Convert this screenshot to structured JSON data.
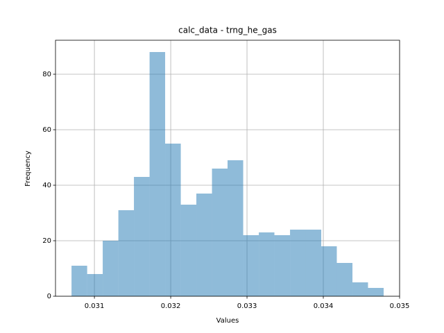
{
  "chart_data": {
    "type": "histogram",
    "title": "calc_data - trng_he_gas",
    "xlabel": "Values",
    "ylabel": "Frequency",
    "bins": [
      0.0307,
      0.030905,
      0.031109,
      0.031314,
      0.031518,
      0.031723,
      0.031927,
      0.032132,
      0.032336,
      0.032541,
      0.032745,
      0.03295,
      0.033155,
      0.033359,
      0.033564,
      0.033768,
      0.033973,
      0.034177,
      0.034382,
      0.034586,
      0.034791
    ],
    "values": [
      11,
      8,
      20,
      31,
      43,
      88,
      55,
      33,
      37,
      46,
      49,
      22,
      23,
      22,
      24,
      24,
      18,
      12,
      5,
      3
    ],
    "color": "#1f77b4",
    "alpha": 0.5,
    "xlim": [
      0.03049,
      0.035
    ],
    "xticks": [
      0.031,
      0.032,
      0.033,
      0.034,
      0.035
    ],
    "ylim": [
      0,
      92.25
    ],
    "yticks": [
      0,
      20,
      40,
      60,
      80
    ],
    "grid": true
  }
}
